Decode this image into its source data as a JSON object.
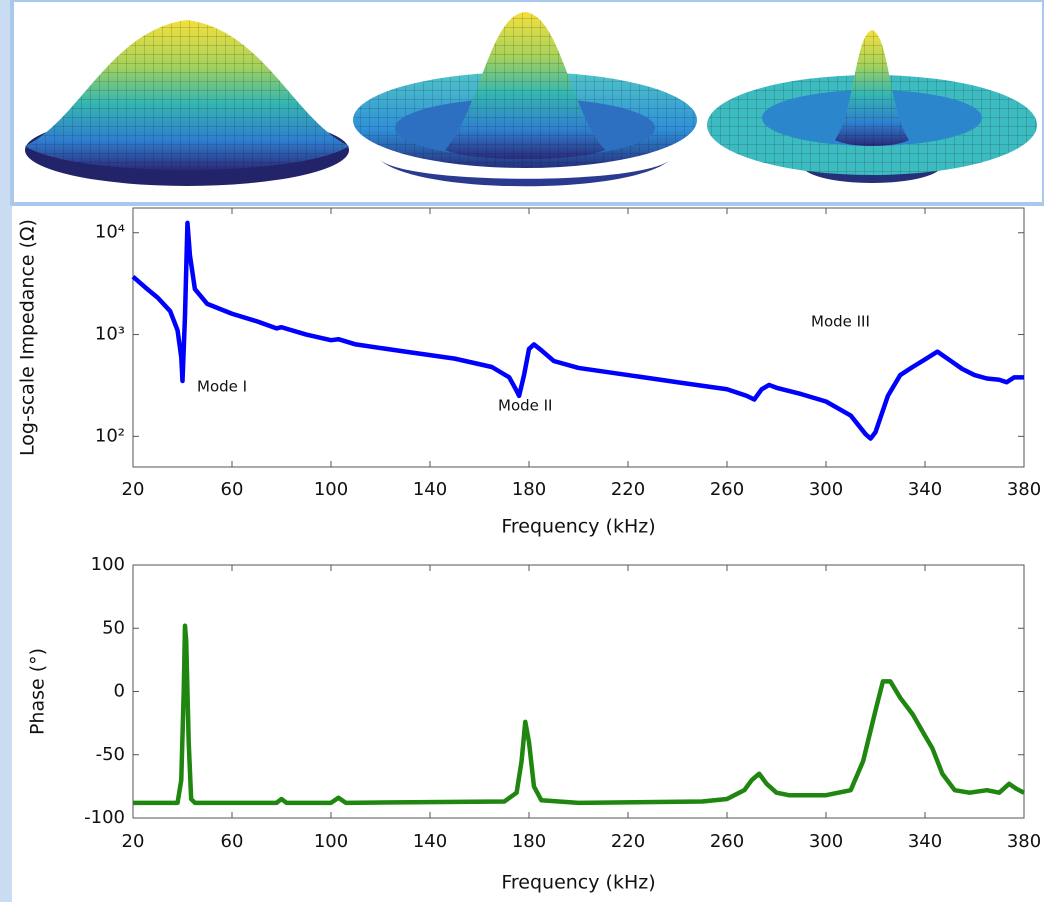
{
  "chart_data": [
    {
      "type": "line",
      "log_scale": true,
      "grid": false,
      "color": "#0000ff",
      "ylabel": "Log-scale Impedance (Ω)",
      "xlabel": "Frequency (kHz)",
      "annotations": [
        "Mode I",
        "Mode II",
        "Mode III"
      ],
      "xlim": [
        20,
        380
      ],
      "xticks": [
        20,
        60,
        100,
        140,
        180,
        220,
        260,
        300,
        340,
        380
      ],
      "ylim": [
        50,
        17500
      ],
      "yticks": [
        {
          "value": 100,
          "label": "10²"
        },
        {
          "value": 1000,
          "label": "10³"
        },
        {
          "value": 10000,
          "label": "10⁴"
        }
      ],
      "x": [
        20,
        25,
        30,
        35,
        38,
        39.5,
        40,
        41,
        42,
        43,
        45,
        50,
        60,
        70,
        78,
        80,
        90,
        100,
        103,
        110,
        130,
        150,
        165,
        172,
        175,
        176,
        178,
        180,
        182,
        185,
        190,
        200,
        220,
        240,
        260,
        268,
        271,
        274,
        277,
        280,
        290,
        300,
        310,
        316,
        318,
        320,
        325,
        330,
        335,
        340,
        345,
        350,
        355,
        360,
        365,
        370,
        373,
        376,
        380
      ],
      "values": [
        3700,
        2900,
        2300,
        1700,
        1100,
        600,
        350,
        1500,
        12500,
        6000,
        2800,
        2000,
        1600,
        1350,
        1150,
        1180,
        1000,
        880,
        900,
        800,
        680,
        580,
        480,
        380,
        280,
        250,
        400,
        720,
        800,
        700,
        550,
        470,
        400,
        340,
        290,
        250,
        230,
        290,
        320,
        300,
        260,
        220,
        160,
        105,
        95,
        110,
        250,
        400,
        480,
        570,
        680,
        560,
        460,
        400,
        370,
        360,
        340,
        380,
        380
      ]
    },
    {
      "type": "line",
      "log_scale": false,
      "grid": false,
      "color": "#1f860f",
      "ylabel": "Phase (°)",
      "xlabel": "Frequency (kHz)",
      "xlim": [
        20,
        380
      ],
      "xticks": [
        20,
        60,
        100,
        140,
        180,
        220,
        260,
        300,
        340,
        380
      ],
      "ylim": [
        -100,
        100
      ],
      "yticks": [
        -100,
        -50,
        0,
        50,
        100
      ],
      "x": [
        20,
        38,
        39.5,
        40.5,
        41,
        41.5,
        42.5,
        43.5,
        45,
        78,
        80,
        82,
        100,
        103,
        106,
        170,
        175,
        177,
        178.5,
        180,
        182,
        185,
        200,
        250,
        260,
        267,
        270,
        273,
        276,
        280,
        285,
        290,
        300,
        310,
        315,
        320,
        323,
        326,
        330,
        335,
        340,
        343,
        347,
        352,
        358,
        365,
        370,
        374,
        377,
        380
      ],
      "values": [
        -88,
        -88,
        -70,
        0,
        52,
        40,
        -40,
        -85,
        -88,
        -88,
        -85,
        -88,
        -88,
        -84,
        -88,
        -87,
        -80,
        -55,
        -24,
        -40,
        -75,
        -86,
        -88,
        -87,
        -85,
        -78,
        -70,
        -65,
        -73,
        -80,
        -82,
        -82,
        -82,
        -78,
        -55,
        -15,
        8,
        8,
        -5,
        -18,
        -35,
        -45,
        -65,
        -78,
        -80,
        -78,
        -80,
        -73,
        -77,
        -80
      ]
    }
  ]
}
